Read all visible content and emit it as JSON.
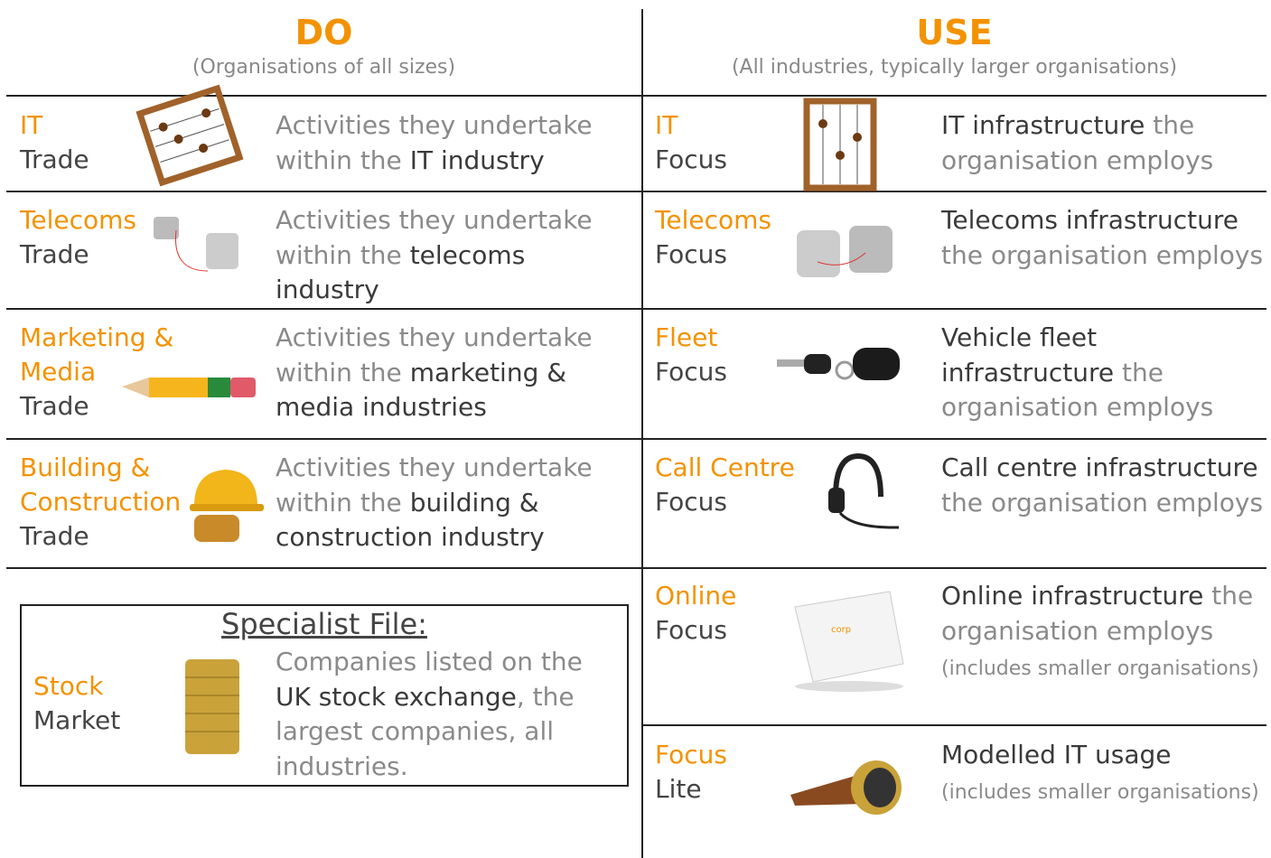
{
  "columns": [
    {
      "heading": "DO",
      "subheading": "(Organisations of all sizes)",
      "rows": [
        {
          "title": "IT",
          "subtitle": "Trade",
          "description": [
            {
              "text": "Activities they undertake within the ",
              "emphasis": false
            },
            {
              "text": "IT industry",
              "emphasis": true
            }
          ]
        },
        {
          "title": "Telecoms",
          "subtitle": "Trade",
          "description": [
            {
              "text": "Activities they undertake within the ",
              "emphasis": false
            },
            {
              "text": "telecoms industry",
              "emphasis": true
            }
          ]
        },
        {
          "title": "Marketing & Media",
          "subtitle": "Trade",
          "description": [
            {
              "text": "Activities they undertake within the ",
              "emphasis": false
            },
            {
              "text": "marketing & media industries",
              "emphasis": true
            }
          ]
        },
        {
          "title": "Building & Construction",
          "subtitle": "Trade",
          "description": [
            {
              "text": "Activities they undertake within the ",
              "emphasis": false
            },
            {
              "text": "building & construction industry",
              "emphasis": true
            }
          ]
        }
      ]
    },
    {
      "heading": "USE",
      "subheading": "(All industries, typically larger organisations)",
      "rows": [
        {
          "title": "IT",
          "subtitle": "Focus",
          "description": [
            {
              "text": "IT infrastructure",
              "emphasis": true
            },
            {
              "text": " the organisation employs",
              "emphasis": false
            }
          ]
        },
        {
          "title": "Telecoms",
          "subtitle": "Focus",
          "description": [
            {
              "text": "Telecoms infrastructure",
              "emphasis": true
            },
            {
              "text": " the organisation employs",
              "emphasis": false
            }
          ]
        },
        {
          "title": "Fleet",
          "subtitle": "Focus",
          "description": [
            {
              "text": "Vehicle fleet infrastructure",
              "emphasis": true
            },
            {
              "text": " the organisation employs",
              "emphasis": false
            }
          ]
        },
        {
          "title": "Call Centre",
          "subtitle": "Focus",
          "description": [
            {
              "text": "Call centre infrastructure",
              "emphasis": true
            },
            {
              "text": " the organisation employs",
              "emphasis": false
            }
          ]
        },
        {
          "title": "Online",
          "subtitle": "Focus",
          "description": [
            {
              "text": "Online infrastructure",
              "emphasis": true
            },
            {
              "text": " the organisation employs",
              "emphasis": false
            },
            {
              "text": " (includes smaller organisations)",
              "emphasis": false,
              "small": true
            }
          ]
        },
        {
          "title": "Focus",
          "subtitle": "Lite",
          "description": [
            {
              "text": "Modelled IT usage",
              "emphasis": true
            },
            {
              "text": " (includes smaller organisations)",
              "emphasis": false,
              "small": true
            }
          ]
        }
      ]
    }
  ],
  "specialist": {
    "heading": "Specialist File:",
    "title": "Stock",
    "subtitle": "Market",
    "description": [
      {
        "text": "Companies listed on the ",
        "emphasis": false
      },
      {
        "text": "UK stock exchange",
        "emphasis": true
      },
      {
        "text": ", the largest companies, all industries.",
        "emphasis": false
      }
    ]
  }
}
